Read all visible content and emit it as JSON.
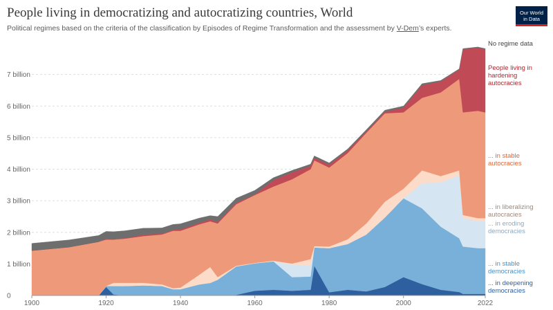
{
  "header": {
    "title": "People living in democratizing and autocratizing countries, World",
    "subtitle_before": "Political regimes based on the criteria of the classification by Episodes of Regime Transformation and the assessment by ",
    "subtitle_link": "V-Dem",
    "subtitle_after": "’s experts.",
    "logo_line1": "Our World",
    "logo_line2": "in Data"
  },
  "chart_data": {
    "type": "area",
    "stacked": true,
    "x_ticks": [
      "1900",
      "1920",
      "1940",
      "1960",
      "1980",
      "2000",
      "2022"
    ],
    "y_ticks": [
      "0",
      "1 billion",
      "2 billion",
      "3 billion",
      "4 billion",
      "5 billion",
      "6 billion",
      "7 billion"
    ],
    "ylim": [
      0,
      8000000000
    ],
    "xlim": [
      1900,
      2022
    ],
    "grid": "horizontal-dashed",
    "x": [
      1900,
      1910,
      1918,
      1920,
      1922,
      1925,
      1930,
      1935,
      1938,
      1940,
      1945,
      1948,
      1950,
      1955,
      1960,
      1965,
      1970,
      1975,
      1976,
      1980,
      1985,
      1990,
      1995,
      2000,
      2005,
      2010,
      2015,
      2016,
      2020,
      2022
    ],
    "series": [
      {
        "name": "... in deepening democracies",
        "color": "#2e5f9e",
        "values": [
          0,
          0,
          0,
          270000000,
          30000000,
          0,
          0,
          0,
          0,
          0,
          0,
          0,
          0,
          20000000,
          150000000,
          180000000,
          150000000,
          180000000,
          940000000,
          100000000,
          180000000,
          130000000,
          270000000,
          580000000,
          360000000,
          180000000,
          110000000,
          50000000,
          50000000,
          50000000
        ]
      },
      {
        "name": "... in stable democracies",
        "color": "#79b0d9",
        "values": [
          0,
          0,
          0,
          30000000,
          270000000,
          300000000,
          320000000,
          300000000,
          200000000,
          200000000,
          350000000,
          400000000,
          500000000,
          900000000,
          870000000,
          900000000,
          430000000,
          420000000,
          580000000,
          1400000000,
          1450000000,
          1800000000,
          2200000000,
          2500000000,
          2400000000,
          2000000000,
          1700000000,
          1500000000,
          1450000000,
          1450000000
        ]
      },
      {
        "name": "... in eroding democracies",
        "color": "#d5e6f2",
        "values": [
          0,
          0,
          0,
          0,
          0,
          0,
          0,
          0,
          0,
          0,
          0,
          0,
          0,
          0,
          0,
          0,
          400000000,
          350000000,
          0,
          0,
          0,
          0,
          0,
          0,
          800000000,
          1400000000,
          2000000000,
          900000000,
          850000000,
          850000000
        ]
      },
      {
        "name": "... in liberalizing autocracies",
        "color": "#fcdcc8",
        "values": [
          0,
          0,
          0,
          0,
          100000000,
          100000000,
          80000000,
          50000000,
          30000000,
          50000000,
          300000000,
          500000000,
          80000000,
          20000000,
          10000000,
          20000000,
          30000000,
          200000000,
          40000000,
          50000000,
          150000000,
          350000000,
          500000000,
          300000000,
          400000000,
          200000000,
          150000000,
          100000000,
          100000000,
          100000000
        ]
      },
      {
        "name": "... in stable autocracies",
        "color": "#ee9a7a",
        "values": [
          1420000000,
          1530000000,
          1700000000,
          1470000000,
          1370000000,
          1400000000,
          1480000000,
          1580000000,
          1820000000,
          1800000000,
          1600000000,
          1450000000,
          1700000000,
          1950000000,
          2150000000,
          2350000000,
          2670000000,
          2850000000,
          2720000000,
          2500000000,
          2730000000,
          2870000000,
          2800000000,
          2420000000,
          2300000000,
          2650000000,
          2900000000,
          3250000000,
          3400000000,
          3350000000
        ]
      },
      {
        "name": "People living in hardening autocracies",
        "color": "#c04a55",
        "values": [
          0,
          0,
          0,
          30000000,
          20000000,
          20000000,
          50000000,
          30000000,
          30000000,
          50000000,
          50000000,
          60000000,
          50000000,
          50000000,
          20000000,
          200000000,
          220000000,
          100000000,
          80000000,
          100000000,
          80000000,
          50000000,
          50000000,
          150000000,
          400000000,
          350000000,
          300000000,
          2000000000,
          2000000000,
          2000000000
        ]
      },
      {
        "name": "No regime data",
        "color": "#6e6e6e",
        "values": [
          230000000,
          230000000,
          200000000,
          230000000,
          230000000,
          230000000,
          200000000,
          180000000,
          170000000,
          170000000,
          150000000,
          120000000,
          170000000,
          140000000,
          130000000,
          80000000,
          60000000,
          60000000,
          60000000,
          50000000,
          50000000,
          50000000,
          50000000,
          50000000,
          50000000,
          30000000,
          20000000,
          20000000,
          20000000,
          20000000
        ]
      }
    ],
    "series_labels": [
      {
        "lines": [
          "No regime data"
        ],
        "color": "#444444"
      },
      {
        "lines": [
          "People living in",
          "hardening",
          "autocracies"
        ],
        "color": "#b0272f"
      },
      {
        "lines": [
          "... in stable",
          "autocracies"
        ],
        "color": "#e06536"
      },
      {
        "lines": [
          "... in liberalizing",
          "autocracies"
        ],
        "color": "#a0877a"
      },
      {
        "lines": [
          "... in eroding",
          "democracies"
        ],
        "color": "#8fa9bf"
      },
      {
        "lines": [
          "... in stable",
          "democracies"
        ],
        "color": "#4c8fc4"
      },
      {
        "lines": [
          "... in deepening",
          "democracies"
        ],
        "color": "#2e5f9e"
      }
    ]
  }
}
